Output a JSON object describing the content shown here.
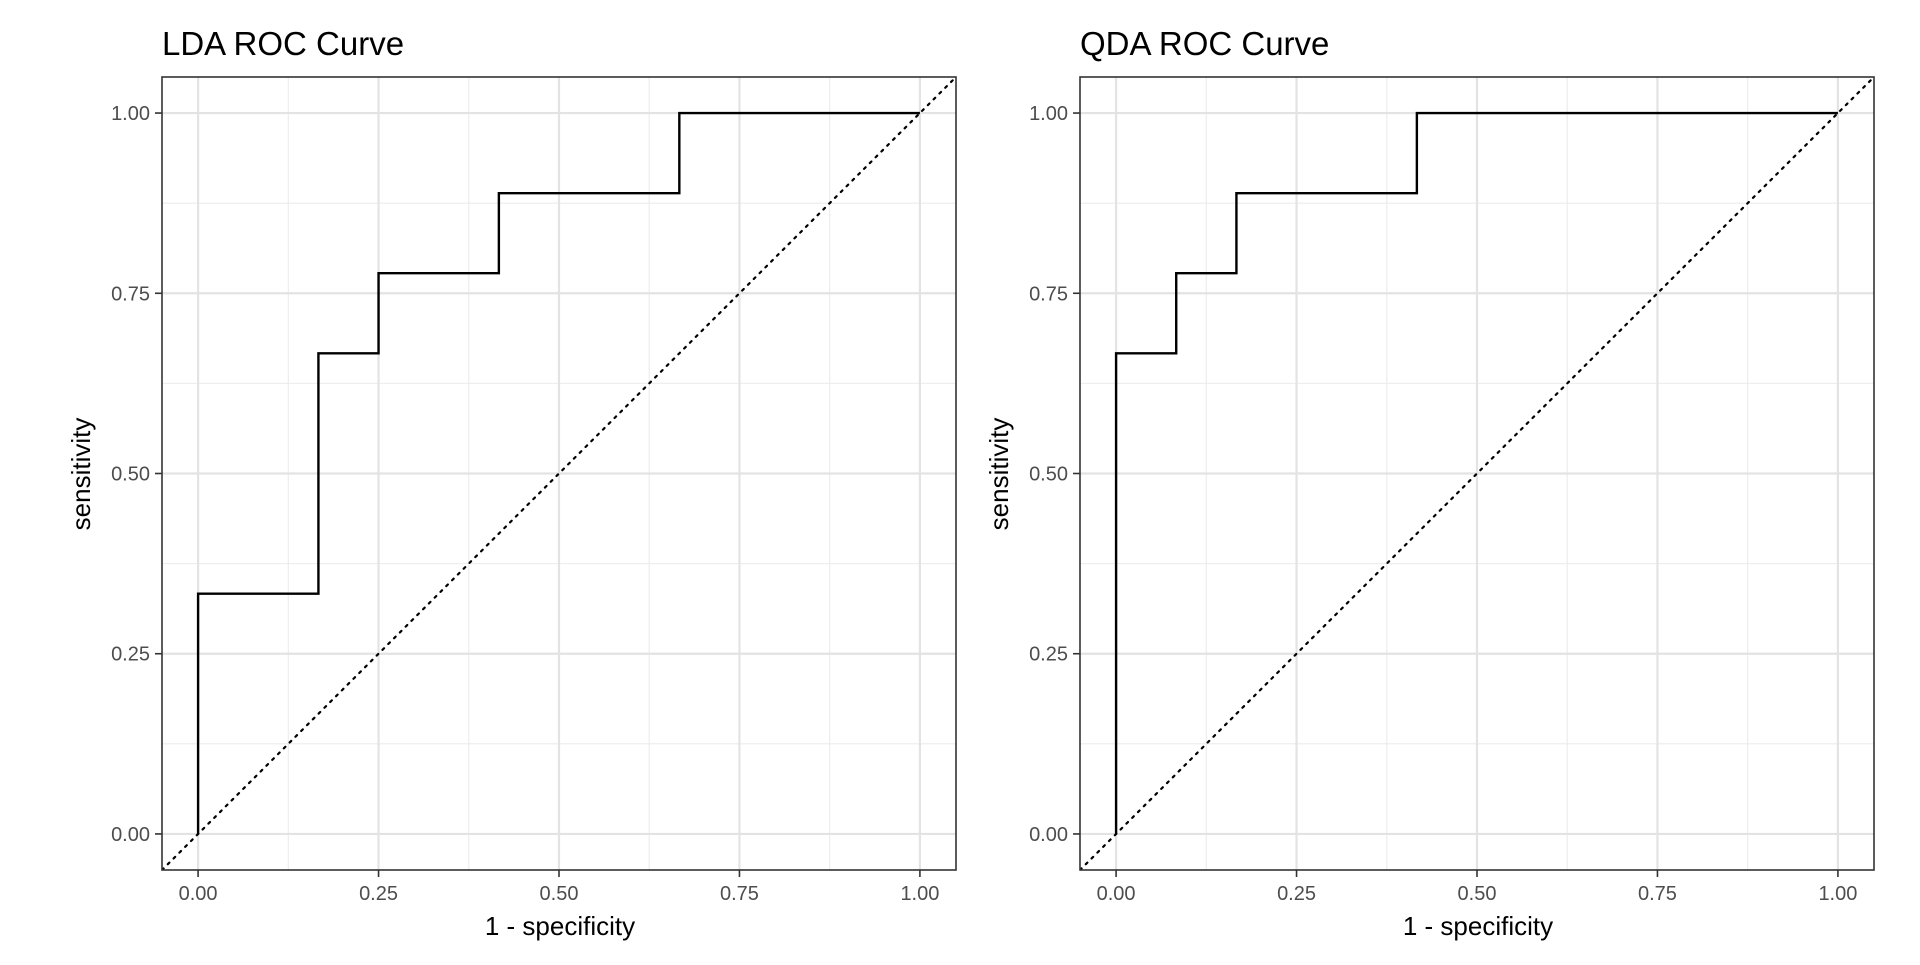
{
  "chart_data": [
    {
      "type": "line",
      "title": "LDA ROC Curve",
      "xlabel": "1 - specificity",
      "ylabel": "sensitivity",
      "xlim": [
        0,
        1
      ],
      "ylim": [
        0,
        1
      ],
      "x_ticks": [
        "0.00",
        "0.25",
        "0.50",
        "0.75",
        "1.00"
      ],
      "y_ticks": [
        "0.00",
        "0.25",
        "0.50",
        "0.75",
        "1.00"
      ],
      "grid": true,
      "series": [
        {
          "line_style": "solid",
          "color": "#000000",
          "x": [
            0,
            0,
            0.1667,
            0.1667,
            0.25,
            0.25,
            0.4167,
            0.4167,
            0.6667,
            0.6667,
            1.0
          ],
          "y": [
            0,
            0.3333,
            0.3333,
            0.6667,
            0.6667,
            0.7778,
            0.7778,
            0.8889,
            0.8889,
            1.0,
            1.0
          ]
        },
        {
          "line_style": "dotted",
          "color": "#000000",
          "x": [
            0,
            1
          ],
          "y": [
            0,
            1
          ]
        }
      ]
    },
    {
      "type": "line",
      "title": "QDA ROC Curve",
      "xlabel": "1 - specificity",
      "ylabel": "sensitivity",
      "xlim": [
        0,
        1
      ],
      "ylim": [
        0,
        1
      ],
      "x_ticks": [
        "0.00",
        "0.25",
        "0.50",
        "0.75",
        "1.00"
      ],
      "y_ticks": [
        "0.00",
        "0.25",
        "0.50",
        "0.75",
        "1.00"
      ],
      "grid": true,
      "series": [
        {
          "line_style": "solid",
          "color": "#000000",
          "x": [
            0,
            0,
            0.0833,
            0.0833,
            0.1667,
            0.1667,
            0.4167,
            0.4167,
            1.0
          ],
          "y": [
            0,
            0.6667,
            0.6667,
            0.7778,
            0.7778,
            0.8889,
            0.8889,
            1.0,
            1.0
          ]
        },
        {
          "line_style": "dotted",
          "color": "#000000",
          "x": [
            0,
            1
          ],
          "y": [
            0,
            1
          ]
        }
      ]
    }
  ]
}
